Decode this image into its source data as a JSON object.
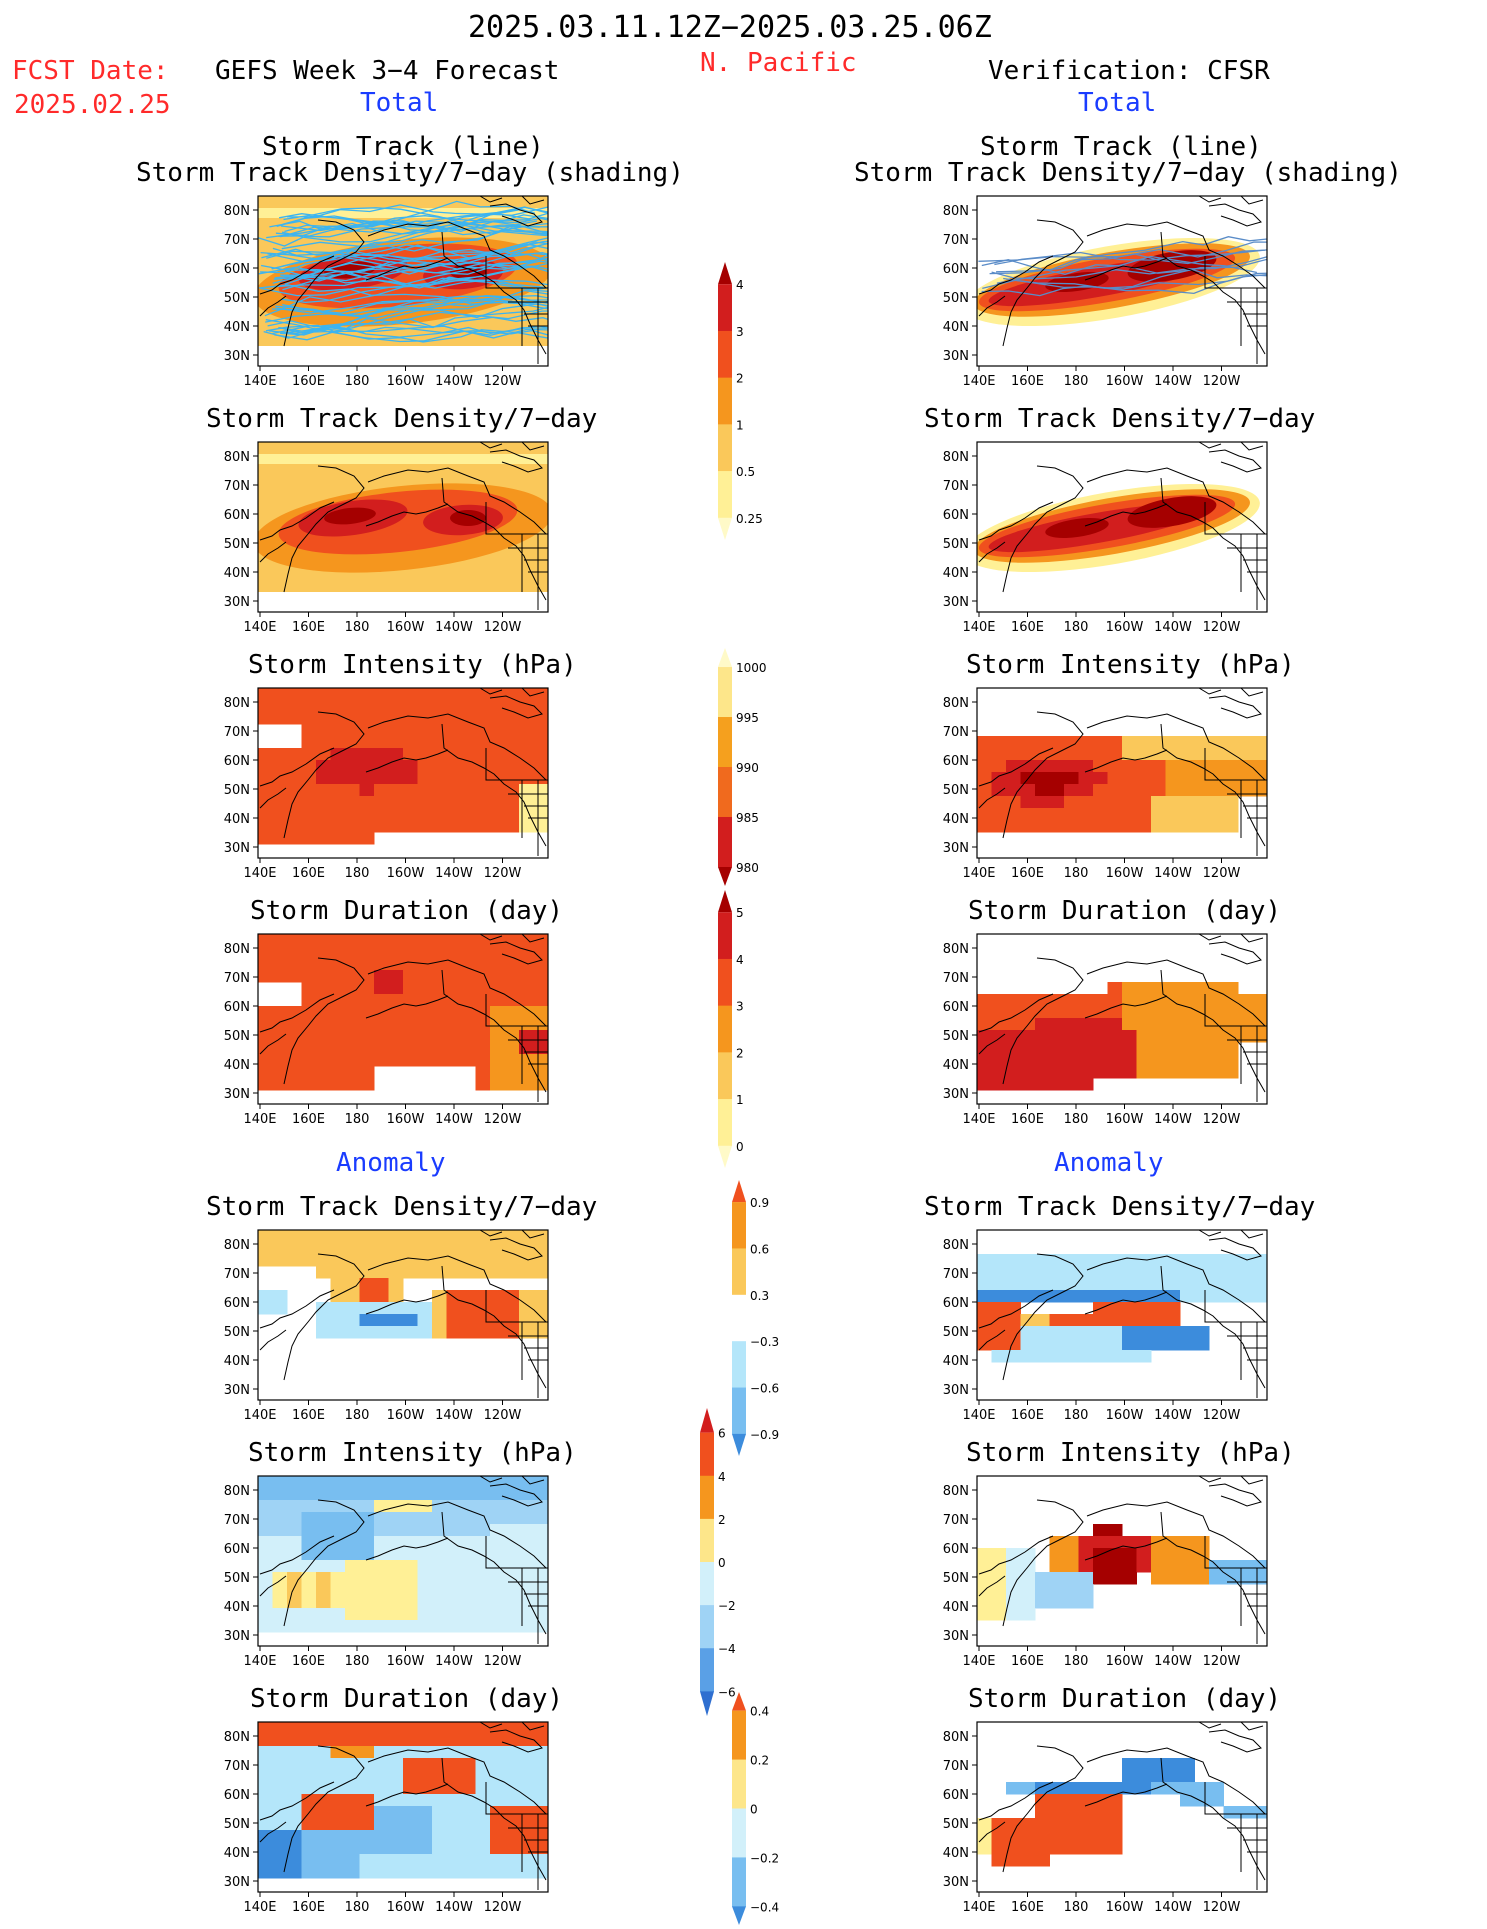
{
  "header": {
    "date_range": "2025.03.11.12Z−2025.03.25.06Z",
    "fcst_label": "FCST Date:",
    "fcst_date": "2025.02.25",
    "forecast_title": "GEFS Week 3−4 Forecast",
    "region": "N. Pacific",
    "verification_title": "Verification: CFSR"
  },
  "sections": {
    "total": "Total",
    "anomaly": "Anomaly"
  },
  "panel_titles": {
    "track_line": "Storm Track (line)",
    "track_shading": "Storm Track Density/7−day (shading)",
    "density": "Storm Track Density/7−day",
    "intensity": "Storm Intensity (hPa)",
    "duration": "Storm Duration (day)"
  },
  "axes": {
    "lat_ticks": [
      "80N",
      "70N",
      "60N",
      "50N",
      "40N",
      "30N"
    ],
    "lon_ticks": [
      "140E",
      "160E",
      "180",
      "160W",
      "140W",
      "120W"
    ]
  },
  "colorbars": {
    "density_total": {
      "labels": [
        "4",
        "3",
        "2",
        "1",
        "0.5",
        "0.25"
      ],
      "colors": [
        "#a50000",
        "#d21e1e",
        "#f0501e",
        "#f5961e",
        "#fac85a",
        "#fff096",
        "#fffac8"
      ]
    },
    "intensity_total": {
      "labels": [
        "1000",
        "995",
        "990",
        "985",
        "980"
      ],
      "colors": [
        "#fffac8",
        "#fde68a",
        "#f5a01e",
        "#f06a1e",
        "#d21e1e",
        "#a50000"
      ]
    },
    "duration_total": {
      "labels": [
        "5",
        "4",
        "3",
        "2",
        "1",
        "0"
      ],
      "colors": [
        "#a50000",
        "#d21e1e",
        "#f0501e",
        "#f5961e",
        "#fac85a",
        "#fff096",
        "#fffac8"
      ]
    },
    "density_anom": {
      "labels": [
        "0.9",
        "0.6",
        "0.3",
        "−0.3",
        "−0.6",
        "−0.9"
      ],
      "colors": [
        "#f0501e",
        "#f5961e",
        "#fac85a",
        "#ffffff",
        "#b4e6fa",
        "#78bef0",
        "#3c8cdc"
      ]
    },
    "intensity_anom": {
      "labels": [
        "6",
        "4",
        "2",
        "0",
        "−2",
        "−4",
        "−6"
      ],
      "colors": [
        "#d21e1e",
        "#f0501e",
        "#f5961e",
        "#fde68a",
        "#d2f0fa",
        "#9fd3f5",
        "#5aa0e6",
        "#2f6fd0"
      ]
    },
    "duration_anom": {
      "labels": [
        "0.4",
        "0.2",
        "0",
        "−0.2",
        "−0.4"
      ],
      "colors": [
        "#f0501e",
        "#f5961e",
        "#fde68a",
        "#d2f0fa",
        "#78bef0",
        "#3c8cdc"
      ]
    }
  },
  "colors": {
    "track_forecast": "#3cb4f0",
    "track_verif": "#5a8cc8",
    "dark_red": "#a50000",
    "red": "#d21e1e",
    "orange_red": "#f0501e",
    "orange": "#f5961e",
    "light_orange": "#fac85a",
    "yellow": "#fff096",
    "pale": "#fffac8",
    "light_blue": "#b4e6fa",
    "mid_blue": "#78bef0",
    "blue": "#3c8cdc"
  }
}
